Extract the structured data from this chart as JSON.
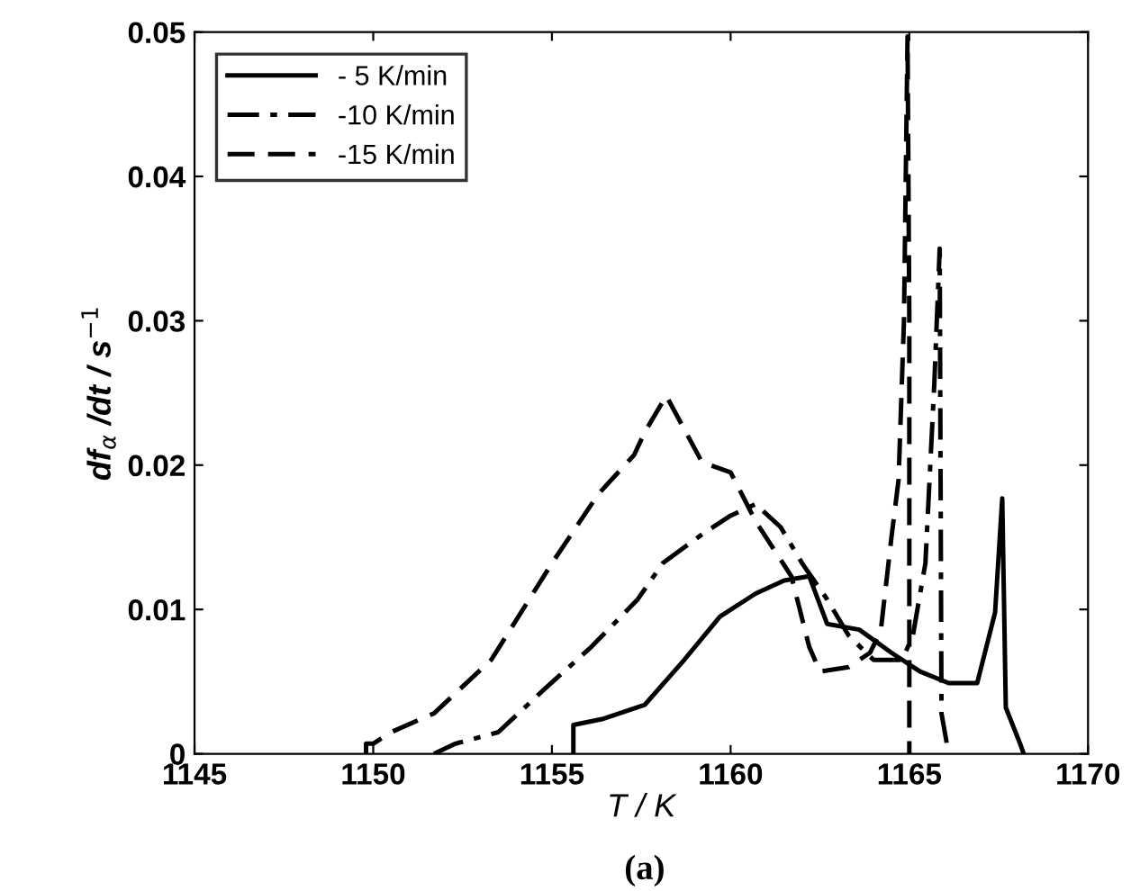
{
  "chart_data": {
    "type": "line",
    "xlabel": "T / K",
    "ylabel": "df$_{α}$ /dt / s$^{−1}$",
    "annotations": [
      "(a)"
    ],
    "xlim": [
      1145,
      1170
    ],
    "xticks": [
      1145,
      1150,
      1155,
      1160,
      1165,
      1170
    ],
    "ylim": [
      0,
      0.05
    ],
    "yticks": [
      {
        "value": 0,
        "label": "0"
      },
      0.01,
      0.02,
      0.03,
      0.04,
      0.05
    ],
    "grid": false,
    "legend": "top left",
    "series": [
      {
        "name": "- 5 K/min",
        "color": "#000000",
        "line_style": "solid",
        "x": [
          1155.6,
          1155.6,
          1156.4,
          1157.6,
          1158.7,
          1159.7,
          1160.7,
          1161.5,
          1162.2,
          1162.7,
          1163.6,
          1164.5,
          1165.3,
          1166.1,
          1166.9,
          1167.4,
          1167.6,
          1167.7,
          1168.1,
          1168.2
        ],
        "values": [
          0,
          0.002,
          0.0024,
          0.0034,
          0.0065,
          0.0095,
          0.0111,
          0.012,
          0.0123,
          0.009,
          0.0086,
          0.007,
          0.0057,
          0.0049,
          0.0049,
          0.0098,
          0.0177,
          0.0032,
          0.0007,
          0
        ]
      },
      {
        "name": "-10 K/min",
        "color": "#000000",
        "line_style": "dashdot",
        "x": [
          1151.7,
          1152.3,
          1153.5,
          1154.8,
          1156.1,
          1157.4,
          1158.1,
          1159.2,
          1160.0,
          1160.7,
          1161.4,
          1162.0,
          1162.7,
          1163.3,
          1164.0,
          1164.8,
          1165.1,
          1165.45,
          1165.7,
          1165.85,
          1165.9,
          1166.1
        ],
        "values": [
          0,
          0.0007,
          0.0015,
          0.0045,
          0.0074,
          0.0107,
          0.0132,
          0.0152,
          0.0165,
          0.0173,
          0.0157,
          0.0132,
          0.0107,
          0.0082,
          0.0065,
          0.0065,
          0.0082,
          0.0132,
          0.0257,
          0.035,
          0.0028,
          0
        ]
      },
      {
        "name": "-15 K/min",
        "color": "#000000",
        "line_style": "dashed",
        "x": [
          1149.8,
          1149.8,
          1150.0,
          1150.5,
          1151.7,
          1153.3,
          1155.0,
          1156.3,
          1157.3,
          1157.6,
          1158.2,
          1159.2,
          1160.0,
          1160.7,
          1161.7,
          1162.2,
          1162.5,
          1163.3,
          1163.9,
          1164.2,
          1164.5,
          1164.7,
          1164.85,
          1164.95,
          1165.0,
          1165.0
        ],
        "values": [
          0,
          0.0007,
          0.0007,
          0.0015,
          0.0028,
          0.0065,
          0.0132,
          0.018,
          0.0207,
          0.0223,
          0.0248,
          0.0202,
          0.0195,
          0.0161,
          0.0123,
          0.0074,
          0.0057,
          0.006,
          0.007,
          0.0085,
          0.015,
          0.019,
          0.03,
          0.0497,
          0.03,
          0
        ]
      }
    ]
  }
}
